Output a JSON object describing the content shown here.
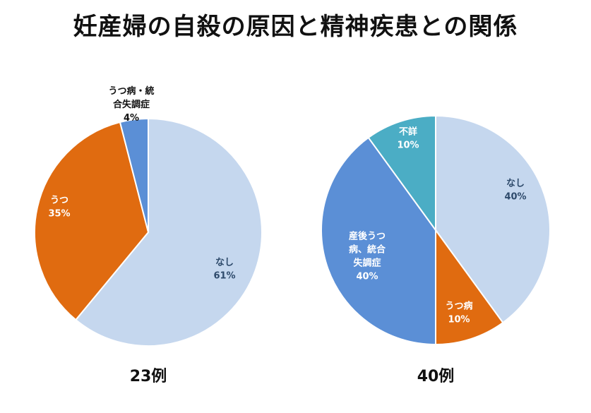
{
  "title": "妊産婦の自殺の原因と精神疾患との関係",
  "chart_data": [
    {
      "type": "pie",
      "caption": "23例",
      "slices": [
        {
          "lines": [
            "なし"
          ],
          "pct_text": "61%",
          "value": 61,
          "color": "#c5d7ee",
          "label_color": "#2e4a6b"
        },
        {
          "lines": [
            "うつ"
          ],
          "pct_text": "35%",
          "value": 35,
          "color": "#e06b10",
          "label_color": "#ffffff"
        },
        {
          "lines": [
            "うつ病・統",
            "合失調症"
          ],
          "pct_text": "4%",
          "value": 4,
          "color": "#5b8fd6",
          "label_color": "#111111"
        }
      ]
    },
    {
      "type": "pie",
      "caption": "40例",
      "slices": [
        {
          "lines": [
            "なし"
          ],
          "pct_text": "40%",
          "value": 40,
          "color": "#c5d7ee",
          "label_color": "#2e4a6b"
        },
        {
          "lines": [
            "うつ病"
          ],
          "pct_text": "10%",
          "value": 10,
          "color": "#e06b10",
          "label_color": "#ffffff"
        },
        {
          "lines": [
            "産後うつ",
            "病、統合",
            "失調症"
          ],
          "pct_text": "40%",
          "value": 40,
          "color": "#5b8fd6",
          "label_color": "#ffffff"
        },
        {
          "lines": [
            "不詳"
          ],
          "pct_text": "10%",
          "value": 10,
          "color": "#4badc5",
          "label_color": "#ffffff"
        }
      ]
    }
  ]
}
